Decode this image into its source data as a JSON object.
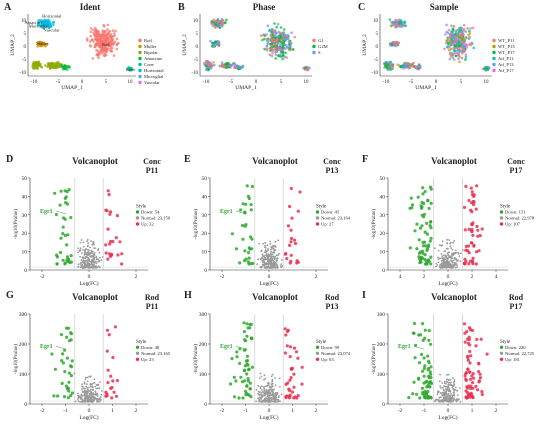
{
  "figure": {
    "row1": [
      {
        "letter": "A",
        "title": "Ident",
        "xlabel": "UMAP_1",
        "ylabel": "UMAP_2",
        "xticks": [
          "-10",
          "-5",
          "0",
          "5",
          "10"
        ],
        "yticks": [
          "10",
          "5",
          "0",
          "-5",
          "-10"
        ],
        "legend": [
          {
            "label": "Rod",
            "color": "#f8766d"
          },
          {
            "label": "Muller",
            "color": "#d39200"
          },
          {
            "label": "Bipolar",
            "color": "#93aa00"
          },
          {
            "label": "Amacrine",
            "color": "#00ba38"
          },
          {
            "label": "Cone",
            "color": "#00c19f"
          },
          {
            "label": "Horizontal",
            "color": "#00b9e3"
          },
          {
            "label": "Microglial",
            "color": "#619cff"
          },
          {
            "label": "Vascular",
            "color": "#db72fb"
          }
        ],
        "annotations": [
          "Rod",
          "Muller",
          "Cone",
          "Horizontal",
          "Macroglial",
          "Vascular",
          "Amacrine"
        ]
      },
      {
        "letter": "B",
        "title": "Phase",
        "xlabel": "UMAP_1",
        "ylabel": "UMAP_2",
        "xticks": [
          "-10",
          "-5",
          "0",
          "5",
          "10"
        ],
        "yticks": [
          "10",
          "5",
          "0",
          "-5",
          "-10"
        ],
        "legend": [
          {
            "label": "G1",
            "color": "#f8766d"
          },
          {
            "label": "G2M",
            "color": "#00ba38"
          },
          {
            "label": "S",
            "color": "#619cff"
          }
        ]
      },
      {
        "letter": "C",
        "title": "Sample",
        "xlabel": "UMAP_1",
        "ylabel": "UMAP_2",
        "xticks": [
          "-10",
          "-5",
          "0",
          "5",
          "10"
        ],
        "yticks": [
          "10",
          "5",
          "0",
          "-5",
          "-10"
        ],
        "legend": [
          {
            "label": "WT_P11",
            "color": "#f8766d"
          },
          {
            "label": "WT_P13",
            "color": "#b79f00"
          },
          {
            "label": "WT_P17",
            "color": "#00ba38"
          },
          {
            "label": "Atf_P11",
            "color": "#00bfc4"
          },
          {
            "label": "Atf_P13",
            "color": "#619cff"
          },
          {
            "label": "Atf_P17",
            "color": "#f564e3"
          }
        ]
      }
    ],
    "volcano": [
      {
        "letter": "D",
        "title": "Volcanoplot",
        "cell": "Conc",
        "age": "P11",
        "xticks": [
          "-2",
          "0",
          "2"
        ],
        "yticks": [
          "50",
          "40",
          "30",
          "20",
          "10",
          "0"
        ],
        "xlabel": "Log(FC)",
        "ylabel": "-log10(Pvalue)",
        "gene": "Egr1",
        "legend_title": "Style",
        "down": "Down: 54",
        "normal": "Normal: 23,150",
        "up": "Up: 32"
      },
      {
        "letter": "E",
        "title": "Volcanoplot",
        "cell": "Conc",
        "age": "P13",
        "xticks": [
          "-2",
          "0",
          "2"
        ],
        "yticks": [
          "50",
          "40",
          "30",
          "20",
          "10",
          "0"
        ],
        "xlabel": "Log(FC)",
        "ylabel": "-log10(Pvalue)",
        "gene": "Egr1",
        "legend_title": "Style",
        "down": "Down: 45",
        "normal": "Normal: 23,164",
        "up": "Up: 27"
      },
      {
        "letter": "F",
        "title": "Volcanoplot",
        "cell": "Conc",
        "age": "P17",
        "xticks": [
          "4",
          "2",
          "0",
          "2",
          "4"
        ],
        "yticks": [
          "50",
          "40",
          "30",
          "20",
          "10",
          "0"
        ],
        "xlabel": "Log(FC)",
        "ylabel": "-log10(Pvalue)",
        "gene": "",
        "legend_title": "Style",
        "down": "Down: 151",
        "normal": "Normal: 22,978",
        "up": "Up: 107"
      },
      {
        "letter": "G",
        "title": "Volcanoplot",
        "cell": "Rod",
        "age": "P11",
        "xticks": [
          "-2",
          "-1",
          "0",
          "1",
          "2"
        ],
        "yticks": [
          "300",
          "200",
          "100",
          "0"
        ],
        "xlabel": "Log(FC)",
        "ylabel": "-log10(Pvalue)",
        "gene": "Egr1",
        "legend_title": "Style",
        "down": "Down: 48",
        "normal": "Normal: 23,165",
        "up": "Up: 23"
      },
      {
        "letter": "H",
        "title": "Volcanoplot",
        "cell": "Rod",
        "age": "P13",
        "xticks": [
          "-2",
          "-1",
          "0",
          "1",
          "2"
        ],
        "yticks": [
          "300",
          "200",
          "100",
          "0"
        ],
        "xlabel": "Log(FC)",
        "ylabel": "-log10(Pvalue)",
        "gene": "Egr1",
        "legend_title": "Style",
        "down": "Down: 99",
        "normal": "Normal: 23,074",
        "up": "Up: 63"
      },
      {
        "letter": "I",
        "title": "Volcanoplot",
        "cell": "Rod",
        "age": "P17",
        "xticks": [
          "-2",
          "-1",
          "0",
          "1",
          "2"
        ],
        "yticks": [
          "300",
          "200",
          "100",
          "0"
        ],
        "xlabel": "Log(FC)",
        "ylabel": "-log10(Pvalue)",
        "gene": "Egr1",
        "legend_title": "Style",
        "down": "Down: 220",
        "normal": "Normal: 22,725",
        "up": "Up: 181"
      }
    ],
    "colors": {
      "down": "#2fa82f",
      "normal": "#9a9a9a",
      "up": "#e8304f",
      "axis": "#333333"
    }
  }
}
